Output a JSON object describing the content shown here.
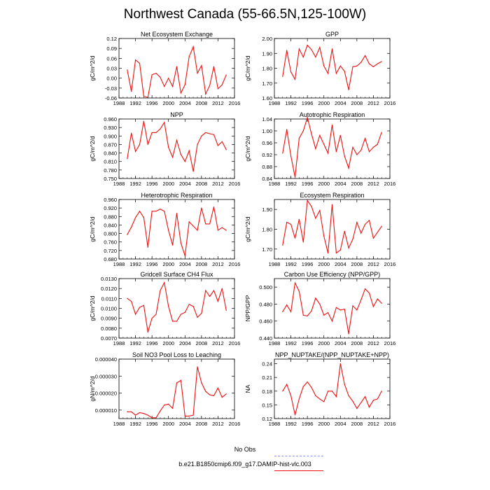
{
  "title": "Northwest Canada (55-66.5N,125-100W)",
  "line_color": "#ee1111",
  "obs_color": "#8b8bff",
  "legend": {
    "obs_label": "No Obs",
    "model_label": "b.e21.B1850cmip6.f09_g17.DAMIP-hist-vlc.003"
  },
  "chart_data": [
    {
      "type": "line",
      "title": "Net Ecosystem Exchange",
      "ylabel": "gC/m^2/d",
      "xlim": [
        1988,
        2016
      ],
      "ylim": [
        -0.06,
        0.12
      ],
      "xticks": [
        "1988",
        "1992",
        "1996",
        "2000",
        "2004",
        "2008",
        "2012",
        "2016"
      ],
      "yticks": [
        "-0.06",
        "-0.03",
        "0.00",
        "0.03",
        "0.06",
        "0.09",
        "0.12"
      ],
      "series": [
        {
          "x": [
            1990,
            1991,
            1992,
            1993,
            1994,
            1995,
            1996,
            1997,
            1998,
            1999,
            2000,
            2001,
            2002,
            2003,
            2004,
            2005,
            2006,
            2007,
            2008,
            2009,
            2010,
            2011,
            2012,
            2013,
            2014
          ],
          "values": [
            0.025,
            -0.04,
            0.055,
            0.045,
            -0.055,
            -0.058,
            0.01,
            0.015,
            0.003,
            -0.025,
            0.0,
            -0.025,
            0.035,
            -0.045,
            -0.02,
            0.065,
            0.095,
            0.015,
            0.038,
            -0.048,
            -0.022,
            0.035,
            -0.032,
            -0.02,
            0.01
          ]
        }
      ]
    },
    {
      "type": "line",
      "title": "GPP",
      "ylabel": "gC/m^2/d",
      "xlim": [
        1988,
        2016
      ],
      "ylim": [
        1.6,
        2.0
      ],
      "xticks": [
        "1988",
        "1992",
        "1996",
        "2000",
        "2004",
        "2008",
        "2012",
        "2016"
      ],
      "yticks": [
        "1.60",
        "1.70",
        "1.80",
        "1.90",
        "2.00"
      ],
      "series": [
        {
          "x": [
            1990,
            1991,
            1992,
            1993,
            1994,
            1995,
            1996,
            1997,
            1998,
            1999,
            2000,
            2001,
            2002,
            2003,
            2004,
            2005,
            2006,
            2007,
            2008,
            2009,
            2010,
            2011,
            2012,
            2013,
            2014
          ],
          "values": [
            1.745,
            1.92,
            1.775,
            1.725,
            1.93,
            1.875,
            1.955,
            1.925,
            1.875,
            1.94,
            1.815,
            1.765,
            1.93,
            1.765,
            1.815,
            1.78,
            1.655,
            1.81,
            1.815,
            1.84,
            1.885,
            1.83,
            1.81,
            1.83,
            1.845
          ]
        }
      ]
    },
    {
      "type": "line",
      "title": "NPP",
      "ylabel": "gC/m^2/d",
      "xlim": [
        1988,
        2016
      ],
      "ylim": [
        0.75,
        0.96
      ],
      "xticks": [
        "1988",
        "1992",
        "1996",
        "2000",
        "2004",
        "2008",
        "2012",
        "2016"
      ],
      "yticks": [
        "0.750",
        "0.780",
        "0.810",
        "0.840",
        "0.870",
        "0.900",
        "0.930",
        "0.960"
      ],
      "series": [
        {
          "x": [
            1990,
            1991,
            1992,
            1993,
            1994,
            1995,
            1996,
            1997,
            1998,
            1999,
            2000,
            2001,
            2002,
            2003,
            2004,
            2005,
            2006,
            2007,
            2008,
            2009,
            2010,
            2011,
            2012,
            2013,
            2014
          ],
          "values": [
            0.82,
            0.91,
            0.845,
            0.87,
            0.952,
            0.87,
            0.912,
            0.912,
            0.925,
            0.948,
            0.86,
            0.825,
            0.885,
            0.835,
            0.81,
            0.848,
            0.775,
            0.87,
            0.9,
            0.912,
            0.908,
            0.905,
            0.866,
            0.88,
            0.852
          ]
        }
      ]
    },
    {
      "type": "line",
      "title": "Autotrophic Respiration",
      "ylabel": "gC/m^2/d",
      "xlim": [
        1988,
        2016
      ],
      "ylim": [
        0.84,
        1.04
      ],
      "xticks": [
        "1988",
        "1992",
        "1996",
        "2000",
        "2004",
        "2008",
        "2012",
        "2016"
      ],
      "yticks": [
        "0.84",
        "0.88",
        "0.92",
        "0.96",
        "1.00",
        "1.04"
      ],
      "series": [
        {
          "x": [
            1990,
            1991,
            1992,
            1993,
            1994,
            1995,
            1996,
            1997,
            1998,
            1999,
            2000,
            2001,
            2002,
            2003,
            2004,
            2005,
            2006,
            2007,
            2008,
            2009,
            2010,
            2011,
            2012,
            2013,
            2014
          ],
          "values": [
            0.925,
            1.005,
            0.915,
            0.845,
            0.975,
            1.0,
            1.045,
            0.99,
            0.94,
            0.985,
            0.955,
            0.925,
            1.02,
            0.93,
            0.985,
            0.915,
            0.875,
            0.945,
            0.92,
            0.935,
            0.975,
            0.93,
            0.945,
            0.955,
            0.995
          ]
        }
      ]
    },
    {
      "type": "line",
      "title": "Heterotrophic Respiration",
      "ylabel": "gC/m^2/d",
      "xlim": [
        1988,
        2016
      ],
      "ylim": [
        0.68,
        0.96
      ],
      "xticks": [
        "1988",
        "1992",
        "1996",
        "2000",
        "2004",
        "2008",
        "2012",
        "2016"
      ],
      "yticks": [
        "0.680",
        "0.720",
        "0.760",
        "0.800",
        "0.840",
        "0.880",
        "0.920",
        "0.960"
      ],
      "series": [
        {
          "x": [
            1990,
            1991,
            1992,
            1993,
            1994,
            1995,
            1996,
            1997,
            1998,
            1999,
            2000,
            2001,
            2002,
            2003,
            2004,
            2005,
            2006,
            2007,
            2008,
            2009,
            2010,
            2011,
            2012,
            2013,
            2014
          ],
          "values": [
            0.795,
            0.83,
            0.875,
            0.905,
            0.875,
            0.735,
            0.905,
            0.905,
            0.915,
            0.905,
            0.815,
            0.745,
            0.895,
            0.755,
            0.695,
            0.855,
            0.835,
            0.815,
            0.92,
            0.845,
            0.845,
            0.925,
            0.815,
            0.828,
            0.815
          ]
        }
      ]
    },
    {
      "type": "line",
      "title": "Ecosystem Respiration",
      "ylabel": "gC/m^2/d",
      "xlim": [
        1988,
        2016
      ],
      "ylim": [
        1.65,
        1.95
      ],
      "xticks": [
        "1988",
        "1992",
        "1996",
        "2000",
        "2004",
        "2008",
        "2012",
        "2016"
      ],
      "yticks": [
        "1.70",
        "1.80",
        "1.90"
      ],
      "series": [
        {
          "x": [
            1990,
            1991,
            1992,
            1993,
            1994,
            1995,
            1996,
            1997,
            1998,
            1999,
            2000,
            2001,
            2002,
            2003,
            2004,
            2005,
            2006,
            2007,
            2008,
            2009,
            2010,
            2011,
            2012,
            2013,
            2014
          ],
          "values": [
            1.72,
            1.835,
            1.825,
            1.755,
            1.85,
            1.735,
            1.945,
            1.915,
            1.855,
            1.895,
            1.765,
            1.68,
            1.925,
            1.68,
            1.695,
            1.79,
            1.705,
            1.75,
            1.835,
            1.78,
            1.825,
            1.845,
            1.755,
            1.785,
            1.815
          ]
        }
      ]
    },
    {
      "type": "line",
      "title": "Gridcell Surface CH4 Flux",
      "ylabel": "gC/m^2/d",
      "xlim": [
        1988,
        2016
      ],
      "ylim": [
        0.007,
        0.013
      ],
      "xticks": [
        "1988",
        "1992",
        "1996",
        "2000",
        "2004",
        "2008",
        "2012",
        "2016"
      ],
      "yticks": [
        "0.0070",
        "0.0080",
        "0.0090",
        "0.0100",
        "0.0110",
        "0.0120",
        "0.0130"
      ],
      "series": [
        {
          "x": [
            1990,
            1991,
            1992,
            1993,
            1994,
            1995,
            1996,
            1997,
            1998,
            1999,
            2000,
            2001,
            2002,
            2003,
            2004,
            2005,
            2006,
            2007,
            2008,
            2009,
            2010,
            2011,
            2012,
            2013,
            2014
          ],
          "values": [
            0.011,
            0.0107,
            0.0094,
            0.0101,
            0.0103,
            0.0076,
            0.009,
            0.0094,
            0.0118,
            0.0126,
            0.0102,
            0.0087,
            0.0087,
            0.0094,
            0.0096,
            0.0104,
            0.0102,
            0.0091,
            0.0095,
            0.0118,
            0.0112,
            0.0118,
            0.0107,
            0.012,
            0.0098
          ]
        }
      ]
    },
    {
      "type": "line",
      "title": "Carbon Use Efficiency (NPP/GPP)",
      "ylabel": "NPP/GPP",
      "xlim": [
        1988,
        2016
      ],
      "ylim": [
        0.44,
        0.51
      ],
      "xticks": [
        "1988",
        "1992",
        "1996",
        "2000",
        "2004",
        "2008",
        "2012",
        "2016"
      ],
      "yticks": [
        "0.440",
        "0.460",
        "0.480",
        "0.500"
      ],
      "series": [
        {
          "x": [
            1990,
            1991,
            1992,
            1993,
            1994,
            1995,
            1996,
            1997,
            1998,
            1999,
            2000,
            2001,
            2002,
            2003,
            2004,
            2005,
            2006,
            2007,
            2008,
            2009,
            2010,
            2011,
            2012,
            2013,
            2014
          ],
          "values": [
            0.471,
            0.479,
            0.471,
            0.505,
            0.495,
            0.467,
            0.466,
            0.472,
            0.487,
            0.48,
            0.467,
            0.47,
            0.46,
            0.476,
            0.473,
            0.474,
            0.445,
            0.478,
            0.473,
            0.485,
            0.498,
            0.493,
            0.477,
            0.486,
            0.481
          ]
        }
      ]
    },
    {
      "type": "line",
      "title": "Soil NO3 Pool Loss to Leaching",
      "ylabel": "gN/m^2/d",
      "xlim": [
        1988,
        2016
      ],
      "ylim": [
        5e-06,
        4e-05
      ],
      "xticks": [
        "1988",
        "1992",
        "1996",
        "2000",
        "2004",
        "2008",
        "2012",
        "2016"
      ],
      "yticks": [
        "0.000010",
        "0.000020",
        "0.000030",
        "0.000040"
      ],
      "ytick_values": [
        1e-05,
        2e-05,
        3e-05,
        4e-05
      ],
      "series": [
        {
          "x": [
            1990,
            1991,
            1992,
            1993,
            1994,
            1995,
            1996,
            1997,
            1998,
            1999,
            2000,
            2001,
            2002,
            2003,
            2004,
            2005,
            2006,
            2007,
            2008,
            2009,
            2010,
            2011,
            2012,
            2013,
            2014
          ],
          "values": [
            9e-06,
            9e-06,
            7e-06,
            8.5e-06,
            8e-06,
            7e-06,
            5.5e-06,
            5.5e-06,
            9.5e-06,
            1.3e-05,
            1.35e-05,
            1.1e-05,
            2.6e-05,
            2.75e-05,
            6.5e-06,
            6.5e-06,
            7e-06,
            3.55e-05,
            2.6e-05,
            2.1e-05,
            1.9e-05,
            1.85e-05,
            2.3e-05,
            1.75e-05,
            1.95e-05
          ]
        }
      ]
    },
    {
      "type": "line",
      "title": "NPP_NUPTAKE/(NPP_NUPTAKE+NPP)",
      "ylabel": "NA",
      "xlim": [
        1988,
        2016
      ],
      "ylim": [
        0.12,
        0.25
      ],
      "xticks": [
        "1988",
        "1992",
        "1996",
        "2000",
        "2004",
        "2008",
        "2012",
        "2016"
      ],
      "yticks": [
        "0.12",
        "0.15",
        "0.18",
        "0.21",
        "0.24"
      ],
      "series": [
        {
          "x": [
            1990,
            1991,
            1992,
            1993,
            1994,
            1995,
            1996,
            1997,
            1998,
            1999,
            2000,
            2001,
            2002,
            2003,
            2004,
            2005,
            2006,
            2007,
            2008,
            2009,
            2010,
            2011,
            2012,
            2013,
            2014
          ],
          "values": [
            0.18,
            0.195,
            0.17,
            0.128,
            0.163,
            0.19,
            0.2,
            0.188,
            0.17,
            0.163,
            0.157,
            0.18,
            0.18,
            0.168,
            0.24,
            0.195,
            0.17,
            0.158,
            0.142,
            0.155,
            0.168,
            0.145,
            0.16,
            0.163,
            0.18
          ]
        }
      ]
    }
  ]
}
